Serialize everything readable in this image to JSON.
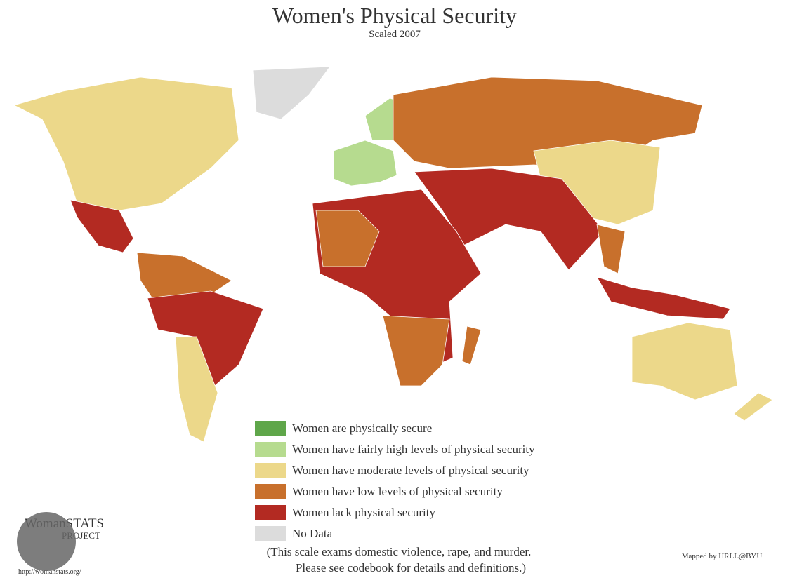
{
  "header": {
    "title": "Women's Physical Security",
    "subtitle": "Scaled 2007"
  },
  "legend": {
    "items": [
      {
        "label": "Women are physically secure",
        "color": "#5fa64a"
      },
      {
        "label": "Women have fairly high levels of physical security",
        "color": "#b6db8f"
      },
      {
        "label": "Women have moderate levels of physical security",
        "color": "#ecd88a"
      },
      {
        "label": "Women have low levels of physical security",
        "color": "#c8702c"
      },
      {
        "label": "Women lack physical security",
        "color": "#b32a22"
      },
      {
        "label": "No Data",
        "color": "#dcdcdc"
      }
    ]
  },
  "note": [
    "(This scale exams domestic violence, rape, and murder.",
    "Please see codebook for details and definitions.)"
  ],
  "credit": "Mapped by HRLL@BYU",
  "logo": {
    "name": "WomanSTATS",
    "sub": "PROJECT",
    "url": "http://womanstats.org/"
  }
}
